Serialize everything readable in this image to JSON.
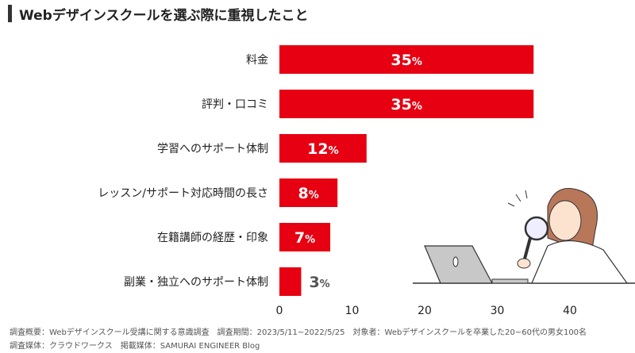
{
  "title": "Webデザインスクールを選ぶ際に重視したこと",
  "chart_data": {
    "type": "bar",
    "orientation": "horizontal",
    "categories": [
      "料金",
      "評判・口コミ",
      "学習へのサポート体制",
      "レッスン/サポート対応時間の長さ",
      "在籍講師の経歴・印象",
      "副業・独立へのサポート体制"
    ],
    "values": [
      35,
      35,
      12,
      8,
      7,
      3
    ],
    "value_suffix": "%",
    "xlim": [
      0,
      45
    ],
    "xticks": [
      0,
      10,
      20,
      30,
      40
    ],
    "bar_color": "#e60012",
    "grid": false
  },
  "footer": {
    "line1": "調査概要：Webデザインスクール受講に関する意識調査　調査期間：2023/5/11~2022/5/25　対象者：Webデザインスクールを卒業した20~60代の男女100名",
    "line2": "調査媒体：クラウドワークス　掲載媒体：SAMURAI ENGINEER Blog"
  }
}
